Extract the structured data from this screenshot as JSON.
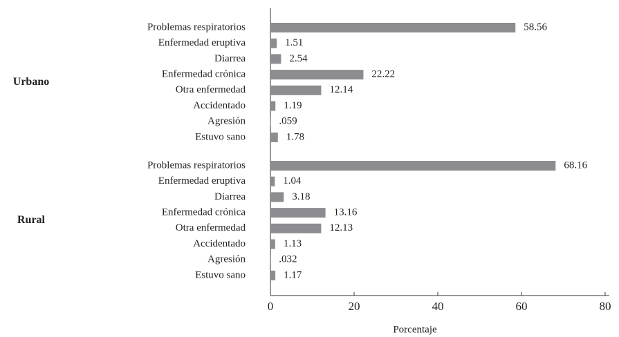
{
  "chart_data": {
    "type": "bar",
    "orientation": "horizontal",
    "xlabel": "Porcentaje",
    "xlim": [
      0,
      81
    ],
    "xticks": [
      0,
      20,
      40,
      60,
      80
    ],
    "color": "#8c8c91",
    "groups": [
      {
        "name": "Urbano",
        "categories": [
          "Problemas respiratorios",
          "Enfermedad eruptiva",
          "Diarrea",
          "Enfermedad crónica",
          "Otra enfermedad",
          "Accidentado",
          "Agresión",
          "Estuvo sano"
        ],
        "values": [
          58.56,
          1.51,
          2.54,
          22.22,
          12.14,
          1.19,
          0.059,
          1.78
        ],
        "value_labels": [
          "58.56",
          "1.51",
          "2.54",
          "22.22",
          "12.14",
          "1.19",
          ".059",
          "1.78"
        ]
      },
      {
        "name": "Rural",
        "categories": [
          "Problemas respiratorios",
          "Enfermedad eruptiva",
          "Diarrea",
          "Enfermedad crónica",
          "Otra enfermedad",
          "Accidentado",
          "Agresión",
          "Estuvo sano"
        ],
        "values": [
          68.16,
          1.04,
          3.18,
          13.16,
          12.13,
          1.13,
          0.032,
          1.17
        ],
        "value_labels": [
          "68.16",
          "1.04",
          "3.18",
          "13.16",
          "12.13",
          "1.13",
          ".032",
          "1.17"
        ]
      }
    ]
  }
}
